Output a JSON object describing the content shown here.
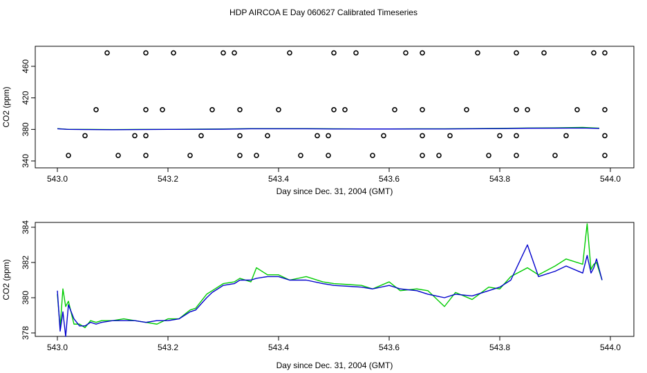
{
  "page": {
    "title": "HDP AIRCOA E  Day 060627  Calibrated Timeseries"
  },
  "chart_data": [
    {
      "type": "scatter",
      "xlabel": "Day since Dec. 31, 2004 (GMT)",
      "ylabel": "CO2 (ppm)",
      "xlim": [
        542.99,
        544.01
      ],
      "ylim": [
        338,
        481
      ],
      "xticks": [
        543.0,
        543.2,
        543.4,
        543.6,
        543.8,
        544.0
      ],
      "xtick_labels": [
        "543.0",
        "543.2",
        "543.4",
        "543.6",
        "543.8",
        "544.0"
      ],
      "yticks": [
        340,
        380,
        420,
        460
      ],
      "ytick_labels": [
        "340",
        "380",
        "420",
        "460"
      ],
      "colors": {
        "green": "#00cc00",
        "blue": "#0000cc",
        "markers": "#000000"
      },
      "markers": {
        "x": [
          543.09,
          543.16,
          543.21,
          543.3,
          543.32,
          543.42,
          543.5,
          543.54,
          543.63,
          543.66,
          543.76,
          543.83,
          543.88,
          543.97,
          543.99,
          543.07,
          543.16,
          543.19,
          543.28,
          543.33,
          543.4,
          543.5,
          543.52,
          543.61,
          543.66,
          543.74,
          543.83,
          543.85,
          543.94,
          543.99,
          543.05,
          543.14,
          543.16,
          543.26,
          543.33,
          543.38,
          543.47,
          543.49,
          543.59,
          543.66,
          543.71,
          543.8,
          543.83,
          543.92,
          543.99,
          543.02,
          543.11,
          543.16,
          543.24,
          543.33,
          543.36,
          543.44,
          543.49,
          543.57,
          543.66,
          543.69,
          543.78,
          543.83,
          543.9,
          543.99
        ],
        "y": [
          477,
          477,
          477,
          477,
          477,
          477,
          477,
          477,
          477,
          477,
          477,
          477,
          477,
          477,
          477,
          405,
          405,
          405,
          405,
          405,
          405,
          405,
          405,
          405,
          405,
          405,
          405,
          405,
          405,
          405,
          372,
          372,
          372,
          372,
          372,
          372,
          372,
          372,
          372,
          372,
          372,
          372,
          372,
          372,
          372,
          347,
          347,
          347,
          347,
          347,
          347,
          347,
          347,
          347,
          347,
          347,
          347,
          347,
          347,
          347
        ]
      },
      "series": [
        {
          "x": [
            543.0,
            543.02,
            543.05,
            543.1,
            543.15,
            543.2,
            543.25,
            543.3,
            543.35,
            543.4,
            543.45,
            543.5,
            543.55,
            543.6,
            543.65,
            543.7,
            543.75,
            543.8,
            543.85,
            543.9,
            543.95,
            543.98
          ],
          "values": [
            381,
            380,
            380,
            379.8,
            380,
            380,
            380.3,
            380.5,
            381,
            381,
            381,
            380.8,
            380.6,
            380.6,
            380.8,
            380.8,
            381,
            381.3,
            381.8,
            382,
            382.5,
            381.5
          ]
        },
        {
          "x": [
            543.0,
            543.02,
            543.05,
            543.1,
            543.15,
            543.2,
            543.25,
            543.3,
            543.35,
            543.4,
            543.45,
            543.5,
            543.55,
            543.6,
            543.65,
            543.7,
            543.75,
            543.8,
            543.85,
            543.9,
            543.95,
            543.98
          ],
          "values": [
            380.8,
            380,
            379.8,
            379.6,
            379.8,
            380,
            380.1,
            380.3,
            380.8,
            380.8,
            380.8,
            380.6,
            380.5,
            380.5,
            380.6,
            380.6,
            380.8,
            381,
            381.5,
            381.6,
            381.8,
            381.2
          ]
        }
      ]
    },
    {
      "type": "line",
      "xlabel": "Day since Dec. 31, 2004 (GMT)",
      "ylabel": "CO2 (ppm)",
      "xlim": [
        542.99,
        544.01
      ],
      "ylim": [
        377.7,
        384.4
      ],
      "xticks": [
        543.0,
        543.2,
        543.4,
        543.6,
        543.8,
        544.0
      ],
      "xtick_labels": [
        "543.0",
        "543.2",
        "543.4",
        "543.6",
        "543.8",
        "544.0"
      ],
      "yticks": [
        378,
        380,
        382,
        384
      ],
      "ytick_labels": [
        "378",
        "380",
        "382",
        "384"
      ],
      "colors": {
        "green": "#00cc00",
        "blue": "#0000cc"
      },
      "series": [
        {
          "x": [
            543.0,
            543.005,
            543.01,
            543.015,
            543.02,
            543.03,
            543.04,
            543.05,
            543.06,
            543.07,
            543.08,
            543.1,
            543.12,
            543.14,
            543.16,
            543.18,
            543.2,
            543.22,
            543.24,
            543.25,
            543.27,
            543.28,
            543.3,
            543.32,
            543.33,
            543.35,
            543.36,
            543.38,
            543.4,
            543.42,
            543.45,
            543.48,
            543.5,
            543.55,
            543.57,
            543.6,
            543.62,
            543.65,
            543.67,
            543.7,
            543.72,
            543.75,
            543.78,
            543.8,
            543.82,
            543.85,
            543.87,
            543.9,
            543.92,
            543.95,
            543.958,
            543.965,
            543.97,
            543.975,
            543.985
          ],
          "values": [
            380.2,
            378.3,
            380.5,
            379.5,
            379.8,
            378.5,
            378.5,
            378.3,
            378.7,
            378.6,
            378.7,
            378.7,
            378.8,
            378.7,
            378.6,
            378.5,
            378.8,
            378.8,
            379.3,
            379.4,
            380.2,
            380.4,
            380.8,
            380.9,
            381.1,
            380.9,
            381.7,
            381.3,
            381.3,
            381.0,
            381.2,
            380.9,
            380.8,
            380.7,
            380.5,
            380.9,
            380.4,
            380.5,
            380.4,
            379.5,
            380.3,
            379.9,
            380.6,
            380.5,
            381.2,
            381.7,
            381.3,
            381.8,
            382.2,
            381.9,
            384.2,
            381.6,
            381.9,
            382.0,
            381.0
          ]
        },
        {
          "x": [
            543.0,
            543.005,
            543.01,
            543.015,
            543.02,
            543.03,
            543.04,
            543.05,
            543.06,
            543.07,
            543.08,
            543.1,
            543.12,
            543.14,
            543.16,
            543.18,
            543.2,
            543.22,
            543.24,
            543.25,
            543.27,
            543.28,
            543.3,
            543.32,
            543.33,
            543.35,
            543.36,
            543.38,
            543.4,
            543.42,
            543.45,
            543.48,
            543.5,
            543.55,
            543.57,
            543.6,
            543.62,
            543.65,
            543.67,
            543.7,
            543.72,
            543.75,
            543.78,
            543.8,
            543.82,
            543.85,
            543.87,
            543.9,
            543.92,
            543.95,
            543.958,
            543.965,
            543.97,
            543.975,
            543.985
          ],
          "values": [
            380.4,
            378.1,
            379.2,
            377.8,
            379.6,
            378.8,
            378.4,
            378.4,
            378.6,
            378.5,
            378.6,
            378.7,
            378.7,
            378.7,
            378.6,
            378.7,
            378.7,
            378.8,
            379.2,
            379.3,
            380.0,
            380.3,
            380.7,
            380.8,
            381.0,
            381.0,
            381.1,
            381.2,
            381.2,
            381.0,
            381.0,
            380.8,
            380.7,
            380.6,
            380.5,
            380.7,
            380.5,
            380.4,
            380.2,
            380.0,
            380.2,
            380.1,
            380.4,
            380.6,
            381.0,
            383.0,
            381.2,
            381.5,
            381.8,
            381.4,
            382.4,
            381.4,
            381.7,
            382.2,
            381.0
          ]
        }
      ]
    }
  ]
}
